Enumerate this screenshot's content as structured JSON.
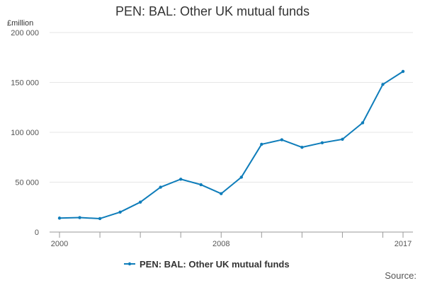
{
  "title": "PEN: BAL: Other UK mutual funds",
  "unit_label": "£million",
  "source_label": "Source:",
  "chart_data": {
    "type": "line",
    "title": "PEN: BAL: Other UK mutual funds",
    "xlabel": "",
    "ylabel": "£million",
    "x": [
      2000,
      2001,
      2002,
      2003,
      2004,
      2005,
      2006,
      2007,
      2008,
      2009,
      2010,
      2011,
      2012,
      2013,
      2014,
      2015,
      2016,
      2017
    ],
    "x_tick_labels": [
      "2000",
      "2008",
      "2017"
    ],
    "x_ticks": [
      2000,
      2008,
      2017
    ],
    "ylim": [
      0,
      200000
    ],
    "y_ticks": [
      0,
      50000,
      100000,
      150000,
      200000
    ],
    "y_tick_labels": [
      "0",
      "50 000",
      "100 000",
      "150 000",
      "200 000"
    ],
    "grid": true,
    "legend_position": "bottom",
    "series": [
      {
        "name": "PEN: BAL: Other UK mutual funds",
        "color": "#0f7dba",
        "values": [
          14000,
          14500,
          13500,
          20000,
          30000,
          45000,
          53000,
          47500,
          38500,
          55000,
          88000,
          92500,
          85000,
          89500,
          93000,
          109500,
          148000,
          161000
        ]
      }
    ]
  }
}
